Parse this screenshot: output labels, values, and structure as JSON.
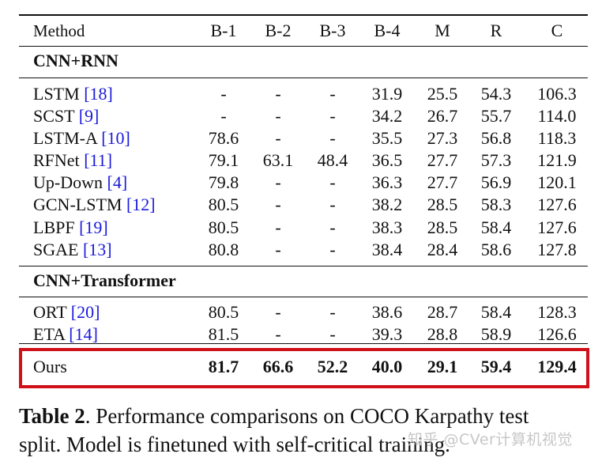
{
  "table": {
    "columns": [
      "Method",
      "B-1",
      "B-2",
      "B-3",
      "B-4",
      "M",
      "R",
      "C"
    ],
    "groups": [
      {
        "title": "CNN+RNN",
        "rows": [
          {
            "name": "LSTM",
            "ref": "[18]",
            "values": [
              "-",
              "-",
              "-",
              "31.9",
              "25.5",
              "54.3",
              "106.3"
            ]
          },
          {
            "name": "SCST",
            "ref": "[9]",
            "values": [
              "-",
              "-",
              "-",
              "34.2",
              "26.7",
              "55.7",
              "114.0"
            ]
          },
          {
            "name": "LSTM-A",
            "ref": "[10]",
            "values": [
              "78.6",
              "-",
              "-",
              "35.5",
              "27.3",
              "56.8",
              "118.3"
            ]
          },
          {
            "name": "RFNet",
            "ref": "[11]",
            "values": [
              "79.1",
              "63.1",
              "48.4",
              "36.5",
              "27.7",
              "57.3",
              "121.9"
            ]
          },
          {
            "name": "Up-Down",
            "ref": "[4]",
            "values": [
              "79.8",
              "-",
              "-",
              "36.3",
              "27.7",
              "56.9",
              "120.1"
            ]
          },
          {
            "name": "GCN-LSTM",
            "ref": "[12]",
            "values": [
              "80.5",
              "-",
              "-",
              "38.2",
              "28.5",
              "58.3",
              "127.6"
            ]
          },
          {
            "name": "LBPF",
            "ref": "[19]",
            "values": [
              "80.5",
              "-",
              "-",
              "38.3",
              "28.5",
              "58.4",
              "127.6"
            ]
          },
          {
            "name": "SGAE",
            "ref": "[13]",
            "values": [
              "80.8",
              "-",
              "-",
              "38.4",
              "28.4",
              "58.6",
              "127.8"
            ]
          }
        ]
      },
      {
        "title": "CNN+Transformer",
        "rows": [
          {
            "name": "ORT",
            "ref": "[20]",
            "values": [
              "80.5",
              "-",
              "-",
              "38.6",
              "28.7",
              "58.4",
              "128.3"
            ]
          },
          {
            "name": "ETA",
            "ref": "[14]",
            "values": [
              "81.5",
              "-",
              "-",
              "39.3",
              "28.8",
              "58.9",
              "126.6"
            ]
          }
        ]
      }
    ],
    "ours": {
      "name": "Ours",
      "values": [
        "81.7",
        "66.6",
        "52.2",
        "40.0",
        "29.1",
        "59.4",
        "129.4"
      ]
    }
  },
  "caption": {
    "label": "Table 2",
    "line1": ". Performance comparisons on COCO Karpathy test",
    "line2": "split. Model is finetuned with self-critical training."
  },
  "watermark": "知乎 @CVer计算机视觉",
  "colors": {
    "highlight": "#d0111a",
    "reference": "#1a1adb"
  }
}
